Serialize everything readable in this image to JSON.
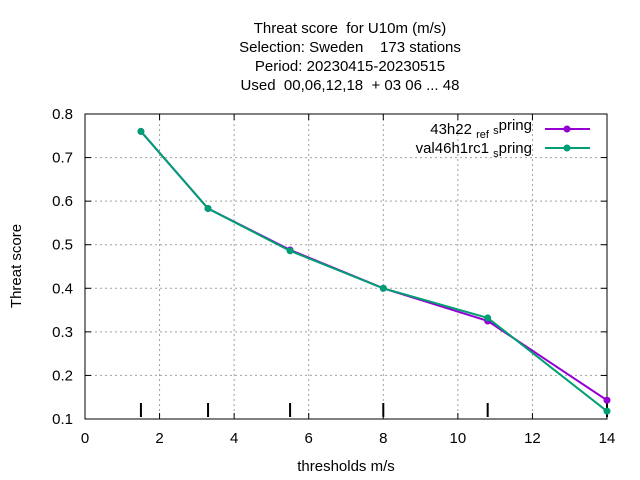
{
  "chart_data": {
    "type": "line",
    "title_lines": [
      "Threat score  for U10m (m/s)",
      "Selection: Sweden    173 stations",
      "Period: 20230415-20230515",
      "Used  00,06,12,18  + 03 06 ... 48"
    ],
    "xlabel": "thresholds m/s",
    "ylabel": "Threat score",
    "xlim": [
      0,
      14
    ],
    "ylim": [
      0.1,
      0.8
    ],
    "xticks": [
      0,
      2,
      4,
      6,
      8,
      10,
      12,
      14
    ],
    "yticks": [
      0.1,
      0.2,
      0.3,
      0.4,
      0.5,
      0.6,
      0.7,
      0.8
    ],
    "grid": true,
    "legend_position": "top-right",
    "threshold_markers": [
      1.5,
      3.3,
      5.5,
      8,
      10.8,
      14
    ],
    "series": [
      {
        "name": "43h22",
        "name_sub": "ref",
        "name_sub2": "s",
        "name_tail": "pring",
        "color": "#9400d3",
        "x": [
          1.5,
          3.3,
          5.5,
          8,
          10.8,
          14
        ],
        "y": [
          0.76,
          0.583,
          0.488,
          0.4,
          0.325,
          0.143
        ]
      },
      {
        "name": "val46h1rc1",
        "name_sub": "s",
        "name_tail": "pring",
        "color": "#009e73",
        "x": [
          1.5,
          3.3,
          5.5,
          8,
          10.8,
          14
        ],
        "y": [
          0.76,
          0.583,
          0.486,
          0.4,
          0.332,
          0.118
        ]
      }
    ]
  }
}
